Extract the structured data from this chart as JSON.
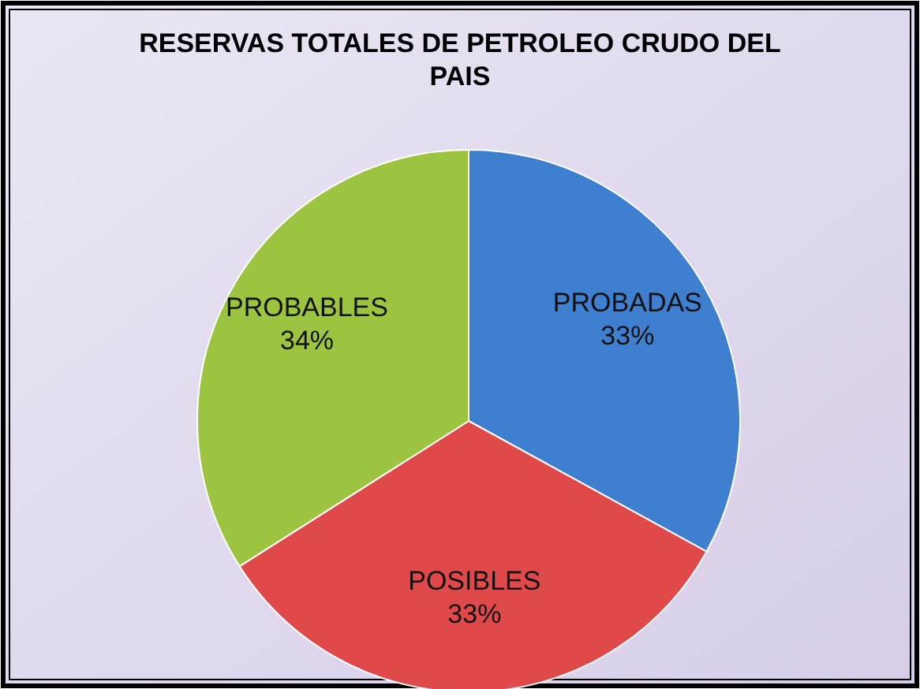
{
  "chart_data": {
    "type": "pie",
    "title": "RESERVAS TOTALES DE PETROLEO CRUDO DEL PAIS",
    "categories": [
      "PROBADAS",
      "POSIBLES",
      "PROBABLES"
    ],
    "values": [
      33,
      33,
      34
    ],
    "value_labels": [
      "33%",
      "33%",
      "34%"
    ],
    "colors": [
      "#3f7fd0",
      "#e0494a",
      "#9dc440"
    ],
    "data_labels": true,
    "legend": false
  }
}
